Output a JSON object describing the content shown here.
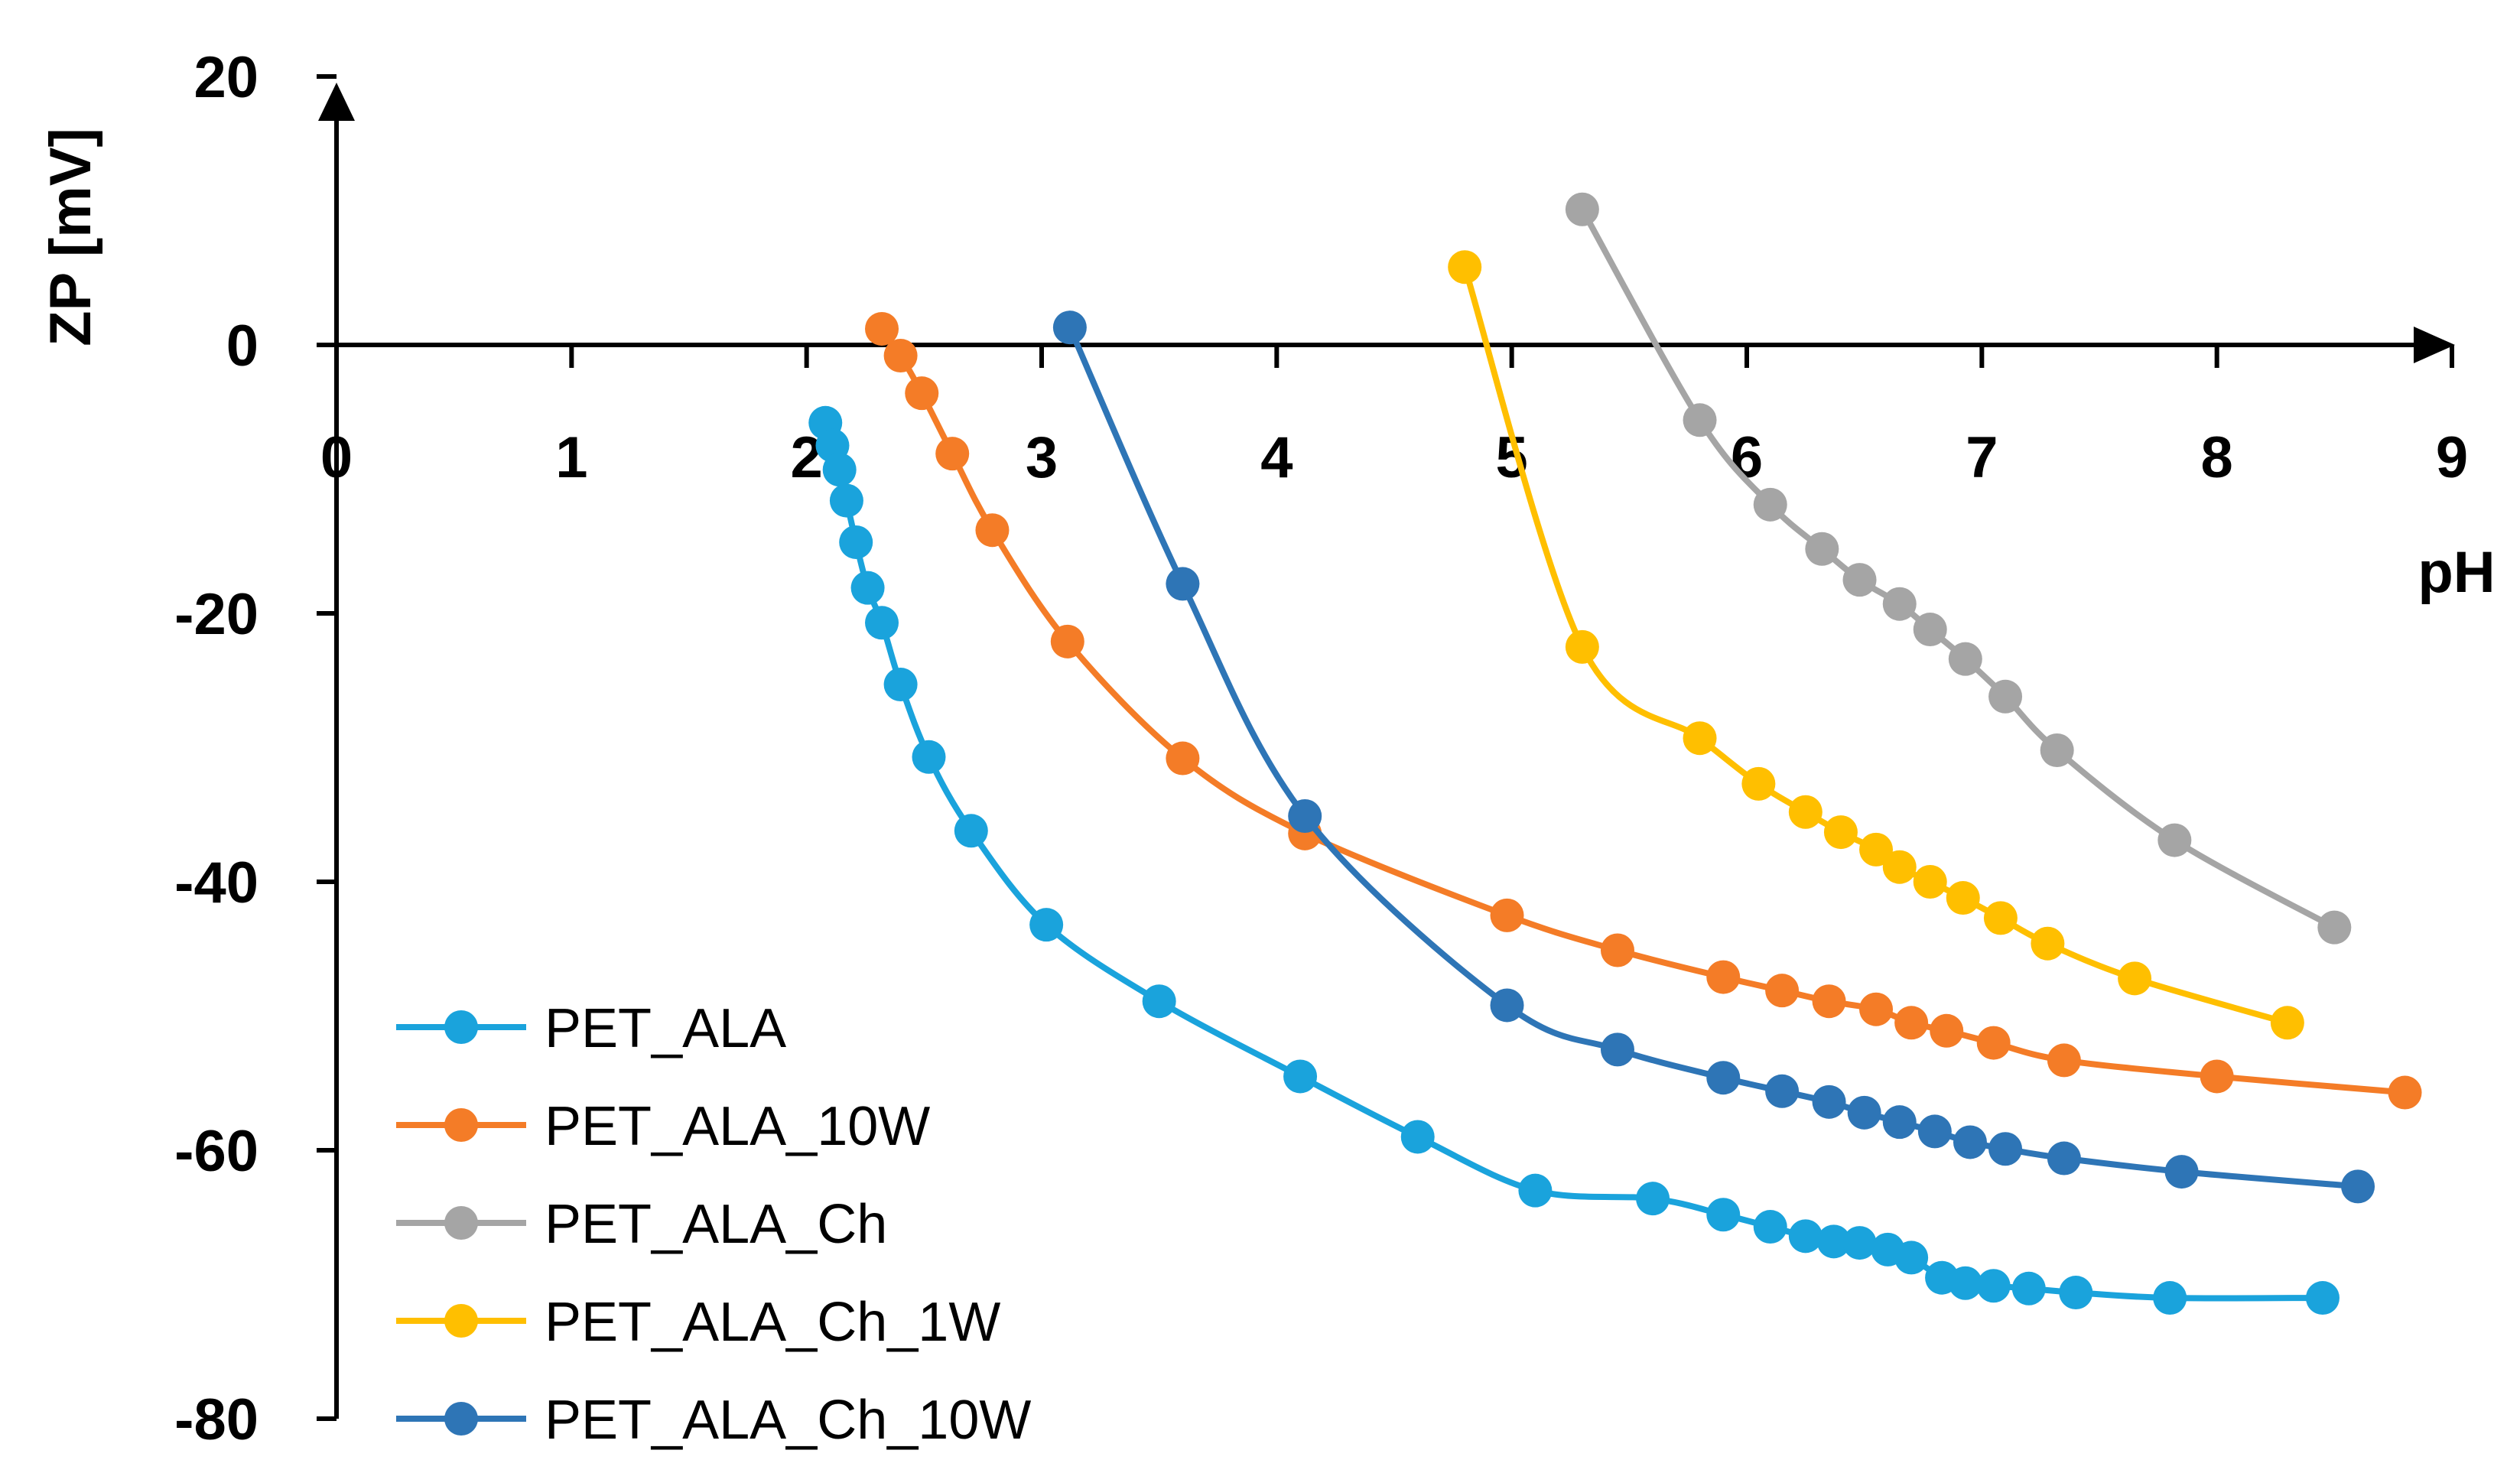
{
  "chart_data": {
    "type": "line",
    "title": "",
    "xlabel": "pH",
    "ylabel": "ZP [mV]",
    "xlim": [
      0,
      9
    ],
    "ylim": [
      -80,
      20
    ],
    "xticks": [
      0,
      1,
      2,
      3,
      4,
      5,
      6,
      7,
      8,
      9
    ],
    "yticks": [
      20,
      0,
      -20,
      -40,
      -60,
      -80
    ],
    "xtick_labels": [
      "0",
      "1",
      "2",
      "3",
      "4",
      "5",
      "6",
      "7",
      "8",
      "9"
    ],
    "ytick_labels": [
      "20",
      "0",
      "-20",
      "-40",
      "-60",
      "-80"
    ],
    "legend_position": "bottom-left",
    "series": [
      {
        "name": "PET_ALA",
        "color": "#1aa3dc",
        "x": [
          2.08,
          2.11,
          2.14,
          2.17,
          2.21,
          2.26,
          2.32,
          2.4,
          2.52,
          2.7,
          3.02,
          3.5,
          4.1,
          4.6,
          5.1,
          5.6,
          5.9,
          6.1,
          6.25,
          6.37,
          6.48,
          6.6,
          6.7,
          6.83,
          6.93,
          7.05,
          7.2,
          7.4,
          7.8,
          8.45
        ],
        "y": [
          -5.8,
          -7.5,
          -9.3,
          -11.6,
          -14.7,
          -18.1,
          -20.7,
          -25.3,
          -30.7,
          -36.2,
          -43.2,
          -48.9,
          -54.5,
          -59,
          -63,
          -63.6,
          -64.8,
          -65.7,
          -66.4,
          -66.8,
          -66.9,
          -67.4,
          -68,
          -69.5,
          -69.9,
          -70.1,
          -70.3,
          -70.6,
          -71,
          -71
        ]
      },
      {
        "name": "PET_ALA_10W",
        "color": "#f47c27",
        "x": [
          2.32,
          2.4,
          2.49,
          2.62,
          2.79,
          3.11,
          3.6,
          4.12,
          4.98,
          5.45,
          5.9,
          6.15,
          6.35,
          6.55,
          6.7,
          6.85,
          7.05,
          7.35,
          8,
          8.8
        ],
        "y": [
          1.2,
          -0.8,
          -3.6,
          -8.1,
          -13.8,
          -22.1,
          -30.8,
          -36.4,
          -42.5,
          -45.1,
          -47.1,
          -48.1,
          -48.9,
          -49.5,
          -50.5,
          -51.1,
          -52,
          -53.3,
          -54.5,
          -55.7
        ]
      },
      {
        "name": "PET_ALA_Ch",
        "color": "#a5a5a5",
        "x": [
          5.3,
          5.8,
          6.1,
          6.32,
          6.48,
          6.65,
          6.78,
          6.93,
          7.1,
          7.32,
          7.82,
          8.5
        ],
        "y": [
          10.1,
          -5.6,
          -11.9,
          -15.2,
          -17.5,
          -19.3,
          -21.2,
          -23.4,
          -26.2,
          -30.2,
          -36.9,
          -43.4
        ]
      },
      {
        "name": "PET_ALA_Ch_1W",
        "color": "#ffbf00",
        "x": [
          4.8,
          5.3,
          5.8,
          6.05,
          6.25,
          6.4,
          6.55,
          6.65,
          6.78,
          6.92,
          7.08,
          7.28,
          7.65,
          8.3
        ],
        "y": [
          5.8,
          -22.5,
          -29.3,
          -32.7,
          -34.8,
          -36.3,
          -37.6,
          -38.9,
          -40,
          -41.2,
          -42.7,
          -44.6,
          -47.2,
          -50.5
        ]
      },
      {
        "name": "PET_ALA_Ch_10W",
        "color": "#2e75b6",
        "x": [
          3.12,
          3.6,
          4.12,
          4.98,
          5.45,
          5.9,
          6.15,
          6.35,
          6.5,
          6.65,
          6.8,
          6.95,
          7.1,
          7.35,
          7.85,
          8.6
        ],
        "y": [
          1.3,
          -17.8,
          -35.1,
          -49.2,
          -52.5,
          -54.6,
          -55.6,
          -56.4,
          -57.2,
          -57.9,
          -58.6,
          -59.4,
          -59.9,
          -60.6,
          -61.6,
          -62.7
        ]
      }
    ]
  }
}
